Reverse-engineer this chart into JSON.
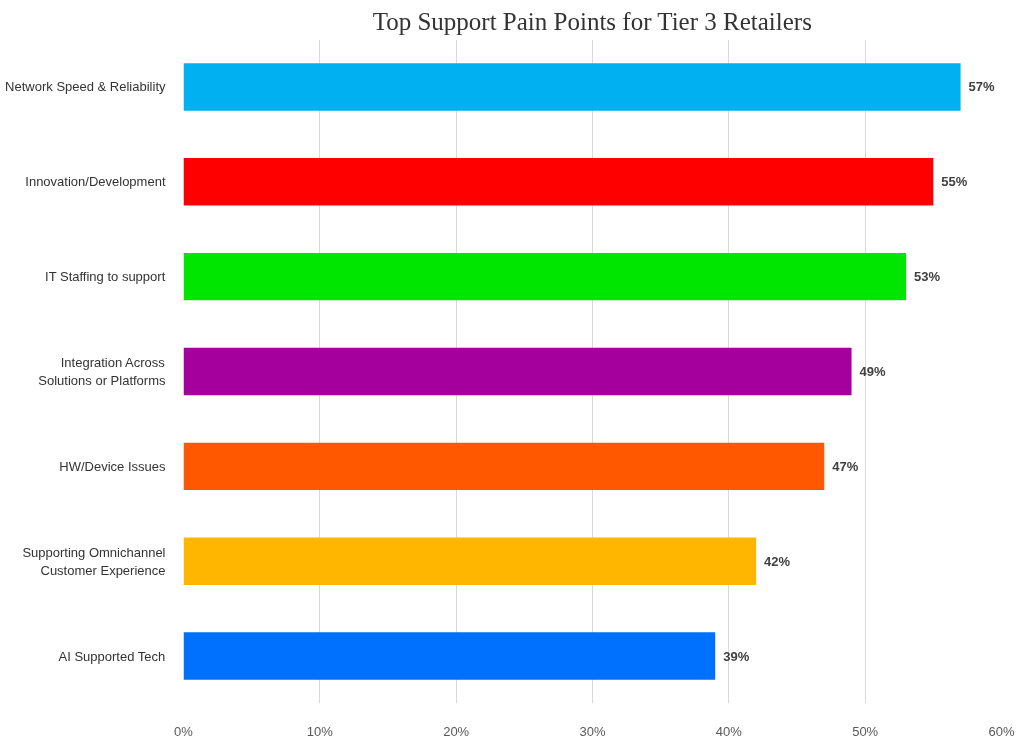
{
  "chart_data": {
    "type": "bar",
    "orientation": "horizontal",
    "title": "Top Support Pain Points for Tier 3 Retailers",
    "categories": [
      "Network Speed & Reliability",
      "Innovation/Development",
      "IT Staffing to support",
      "Integration Across\nSolutions or Platforms",
      "HW/Device Issues",
      "Supporting Omnichannel\nCustomer Experience",
      "AI Supported Tech"
    ],
    "values": [
      57,
      55,
      53,
      49,
      47,
      42,
      39
    ],
    "colors": [
      "#00b0f0",
      "#ff0000",
      "#00e600",
      "#a5009e",
      "#ff5800",
      "#ffb600",
      "#0070ff"
    ],
    "value_labels": [
      "57%",
      "55%",
      "53%",
      "49%",
      "47%",
      "42%",
      "39%"
    ],
    "xlim": [
      0,
      60
    ],
    "xticks": [
      {
        "value": 0,
        "label": "0%"
      },
      {
        "value": 10,
        "label": "10%"
      },
      {
        "value": 20,
        "label": "20%"
      },
      {
        "value": 30,
        "label": "30%"
      },
      {
        "value": 40,
        "label": "40%"
      },
      {
        "value": 50,
        "label": "50%"
      },
      {
        "value": 60,
        "label": "60%"
      }
    ],
    "grid": "x"
  }
}
